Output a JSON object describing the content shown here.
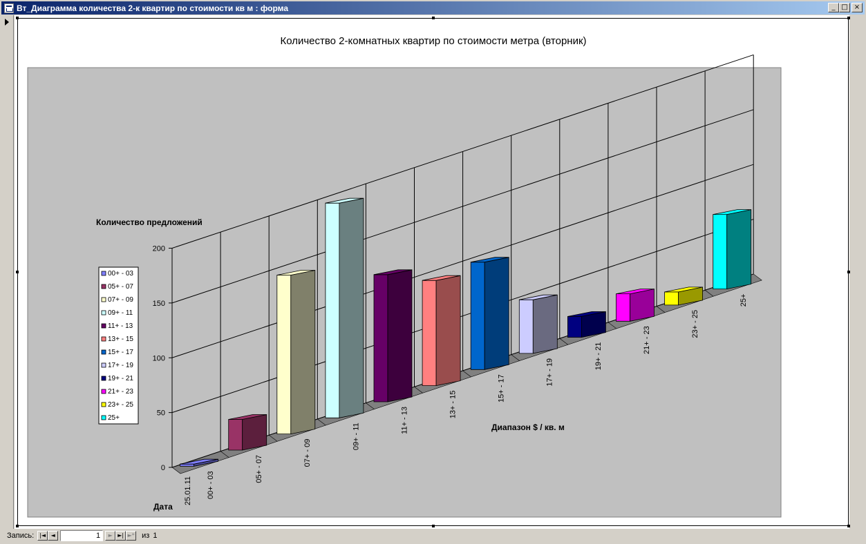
{
  "window": {
    "title": "Вт_Диаграмма количества 2-к квартир по стоимости кв м : форма",
    "buttons": {
      "minimize": "_",
      "maximize": "□",
      "close": "×"
    }
  },
  "statusbar": {
    "record_label": "Запись:",
    "current_record": "1",
    "of_label": "из",
    "total_records": "1",
    "nav": {
      "first": "|◄",
      "prev": "◄",
      "next": "►",
      "last": "►|",
      "new": "►*"
    }
  },
  "chart_data": {
    "type": "bar",
    "title": "Количество 2-комнатных квартир по стоимости метра (вторник)",
    "ylabel": "Количество предложений",
    "xlabel": "Диапазон $ / кв. м",
    "zlabel": "Дата",
    "row_label": "25.01.11",
    "ylim": [
      0,
      200
    ],
    "yticks": [
      0,
      50,
      100,
      150,
      200
    ],
    "grid": true,
    "legend_position": "left",
    "categories": [
      "00+ - 03",
      "05+ - 07",
      "07+ - 09",
      "09+ - 11",
      "11+ - 13",
      "13+ - 15",
      "15+ - 17",
      "17+ - 19",
      "19+ - 21",
      "21+ - 23",
      "23+ - 25",
      "25+"
    ],
    "series": [
      {
        "name": "00+ - 03",
        "value": 2,
        "color": "#8080ff",
        "side": "#4c4c99"
      },
      {
        "name": "05+ - 07",
        "value": 28,
        "color": "#993366",
        "side": "#5c1f3d"
      },
      {
        "name": "07+ - 09",
        "value": 145,
        "color": "#ffffcc",
        "side": "#80806a"
      },
      {
        "name": "09+ - 11",
        "value": 196,
        "color": "#ccffff",
        "side": "#6a8080"
      },
      {
        "name": "11+ - 13",
        "value": 116,
        "color": "#660066",
        "side": "#3d003d"
      },
      {
        "name": "13+ - 15",
        "value": 96,
        "color": "#ff8080",
        "side": "#994d4d"
      },
      {
        "name": "15+ - 17",
        "value": 98,
        "color": "#0066cc",
        "side": "#003d7a"
      },
      {
        "name": "17+ - 19",
        "value": 49,
        "color": "#ccccff",
        "side": "#6a6a80"
      },
      {
        "name": "19+ - 21",
        "value": 19,
        "color": "#000080",
        "side": "#00004d"
      },
      {
        "name": "21+ - 23",
        "value": 25,
        "color": "#ff00ff",
        "side": "#990099"
      },
      {
        "name": "23+ - 25",
        "value": 12,
        "color": "#ffff00",
        "side": "#999900"
      },
      {
        "name": "25+",
        "value": 68,
        "color": "#00ffff",
        "side": "#008080"
      }
    ]
  }
}
